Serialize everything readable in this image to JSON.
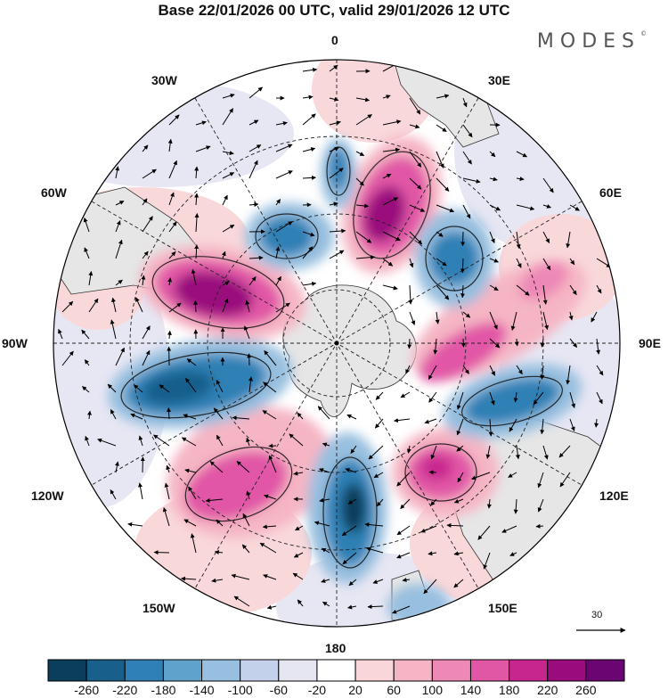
{
  "title": "Base 22/01/2026 00 UTC, valid 29/01/2026 12 UTC",
  "brand": "MODES",
  "brand_mark": "©",
  "longitude_labels": {
    "lon_0": "0",
    "lon_30e": "30E",
    "lon_60e": "60E",
    "lon_90e": "90E",
    "lon_120e": "120E",
    "lon_150e": "150E",
    "lon_180": "180",
    "lon_150w": "150W",
    "lon_120w": "120W",
    "lon_90w": "90W",
    "lon_60w": "60W",
    "lon_30w": "30W"
  },
  "reference_vector": "30",
  "colorbar": {
    "labels": [
      "-260",
      "-220",
      "-180",
      "-140",
      "-100",
      "-60",
      "-20",
      "20",
      "60",
      "100",
      "140",
      "180",
      "220",
      "260"
    ],
    "colors": [
      "#0b3d5c",
      "#185f8c",
      "#2f80b5",
      "#5fa2cc",
      "#98bfdf",
      "#c3d2ea",
      "#e6e6f3",
      "#ffffff",
      "#f9d6d9",
      "#f5b5c4",
      "#ee88b6",
      "#e157a6",
      "#c8268f",
      "#9a0c7d",
      "#6a0572"
    ]
  },
  "colors": {
    "land": "#e6e6e6",
    "coast": "#333333"
  }
}
